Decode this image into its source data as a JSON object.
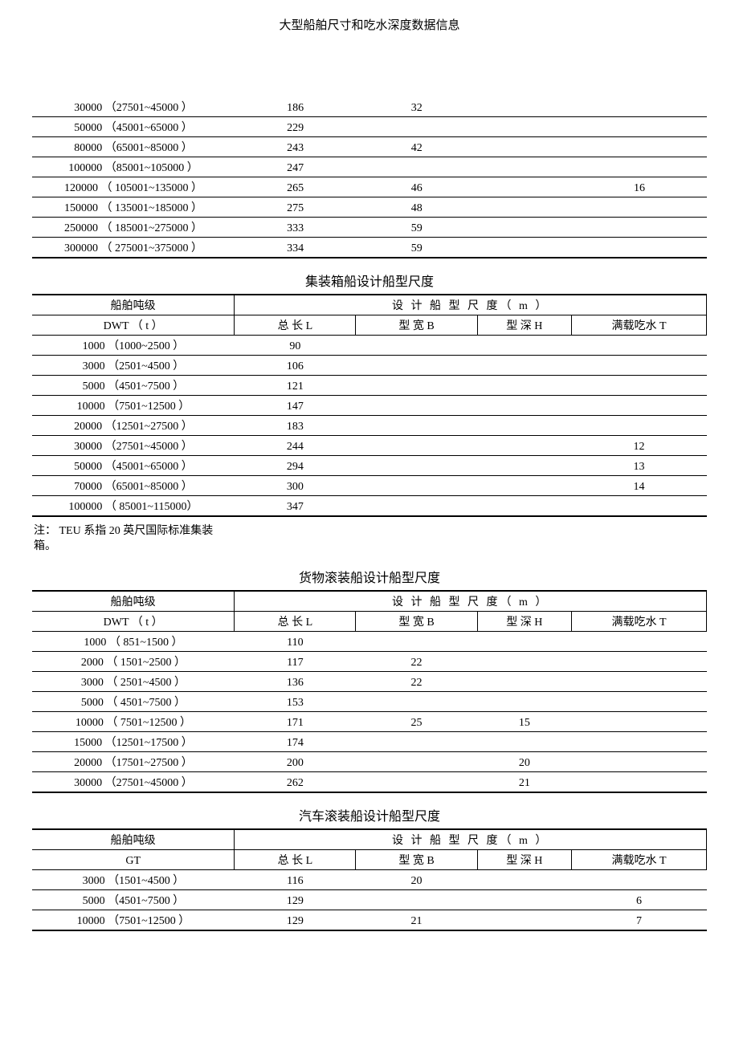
{
  "page_header": "大型船舶尺寸和吃水深度数据信息",
  "col_header_group": "设 计 船 型 尺 度（ m ）",
  "table1": {
    "columns": {
      "c1": "",
      "c2": "",
      "c3": "",
      "c4": "",
      "c5": ""
    },
    "rows": [
      {
        "dwt": "30000 （27501~45000 ）",
        "L": "186",
        "B": "32",
        "H": "",
        "T": ""
      },
      {
        "dwt": "50000 （45001~65000 ）",
        "L": "229",
        "B": "",
        "H": "",
        "T": ""
      },
      {
        "dwt": "80000 （65001~85000 ）",
        "L": "243",
        "B": "42",
        "H": "",
        "T": ""
      },
      {
        "dwt": "100000 （85001~105000 ）",
        "L": "247",
        "B": "",
        "H": "",
        "T": ""
      },
      {
        "dwt": "120000 （ 105001~135000 ）",
        "L": "265",
        "B": "46",
        "H": "",
        "T": "16"
      },
      {
        "dwt": "150000 （ 135001~185000 ）",
        "L": "275",
        "B": "48",
        "H": "",
        "T": ""
      },
      {
        "dwt": "250000 （ 185001~275000 ）",
        "L": "333",
        "B": "59",
        "H": "",
        "T": ""
      },
      {
        "dwt": "300000 （ 275001~375000 ）",
        "L": "334",
        "B": "59",
        "H": "",
        "T": ""
      }
    ]
  },
  "table2": {
    "title": "集装箱船设计船型尺度",
    "h1": "船舶吨级",
    "h2": "DWT （ t ）",
    "cL": "总 长 L",
    "cB": "型 宽 B",
    "cH": "型 深 H",
    "cT": "满载吃水 T",
    "rows": [
      {
        "dwt": "1000 （1000~2500 ）",
        "L": "90",
        "B": "",
        "H": "",
        "T": ""
      },
      {
        "dwt": "3000 （2501~4500 ）",
        "L": "106",
        "B": "",
        "H": "",
        "T": ""
      },
      {
        "dwt": "5000 （4501~7500 ）",
        "L": "121",
        "B": "",
        "H": "",
        "T": ""
      },
      {
        "dwt": "10000 （7501~12500 ）",
        "L": "147",
        "B": "",
        "H": "",
        "T": ""
      },
      {
        "dwt": "20000 （12501~27500 ）",
        "L": "183",
        "B": "",
        "H": "",
        "T": ""
      },
      {
        "dwt": "30000 （27501~45000 ）",
        "L": "244",
        "B": "",
        "H": "",
        "T": "12"
      },
      {
        "dwt": "50000 （45001~65000 ）",
        "L": "294",
        "B": "",
        "H": "",
        "T": "13"
      },
      {
        "dwt": "70000 （65001~85000 ）",
        "L": "300",
        "B": "",
        "H": "",
        "T": "14"
      },
      {
        "dwt": "100000 （ 85001~115000）",
        "L": "347",
        "B": "",
        "H": "",
        "T": ""
      }
    ],
    "note": "注： TEU 系指 20 英尺国际标准集装箱。"
  },
  "table3": {
    "title": "货物滚装船设计船型尺度",
    "h1": "船舶吨级",
    "h2": "DWT （ t ）",
    "cL": "总 长 L",
    "cB": "型 宽 B",
    "cH": "型 深 H",
    "cT": "满载吃水 T",
    "rows": [
      {
        "dwt": "1000 （ 851~1500 ）",
        "L": "110",
        "B": "",
        "H": "",
        "T": ""
      },
      {
        "dwt": "2000 （ 1501~2500 ）",
        "L": "117",
        "B": "22",
        "H": "",
        "T": ""
      },
      {
        "dwt": "3000 （ 2501~4500 ）",
        "L": "136",
        "B": "22",
        "H": "",
        "T": ""
      },
      {
        "dwt": "5000 （ 4501~7500 ）",
        "L": "153",
        "B": "",
        "H": "",
        "T": ""
      },
      {
        "dwt": "10000 （ 7501~12500 ）",
        "L": "171",
        "B": "25",
        "H": "15",
        "T": ""
      },
      {
        "dwt": "15000 （12501~17500 ）",
        "L": "174",
        "B": "",
        "H": "",
        "T": ""
      },
      {
        "dwt": "20000 （17501~27500 ）",
        "L": "200",
        "B": "",
        "H": "20",
        "T": ""
      },
      {
        "dwt": "30000 （27501~45000 ）",
        "L": "262",
        "B": "",
        "H": "21",
        "T": ""
      }
    ]
  },
  "table4": {
    "title": "汽车滚装船设计船型尺度",
    "h1": "船舶吨级",
    "h2": "GT",
    "cL": "总 长 L",
    "cB": "型 宽 B",
    "cH": "型 深 H",
    "cT": "满载吃水 T",
    "rows": [
      {
        "dwt": "3000 （1501~4500 ）",
        "L": "116",
        "B": "20",
        "H": "",
        "T": ""
      },
      {
        "dwt": "5000 （4501~7500 ）",
        "L": "129",
        "B": "",
        "H": "",
        "T": "6"
      },
      {
        "dwt": "10000 （7501~12500 ）",
        "L": "129",
        "B": "21",
        "H": "",
        "T": "7"
      }
    ]
  }
}
